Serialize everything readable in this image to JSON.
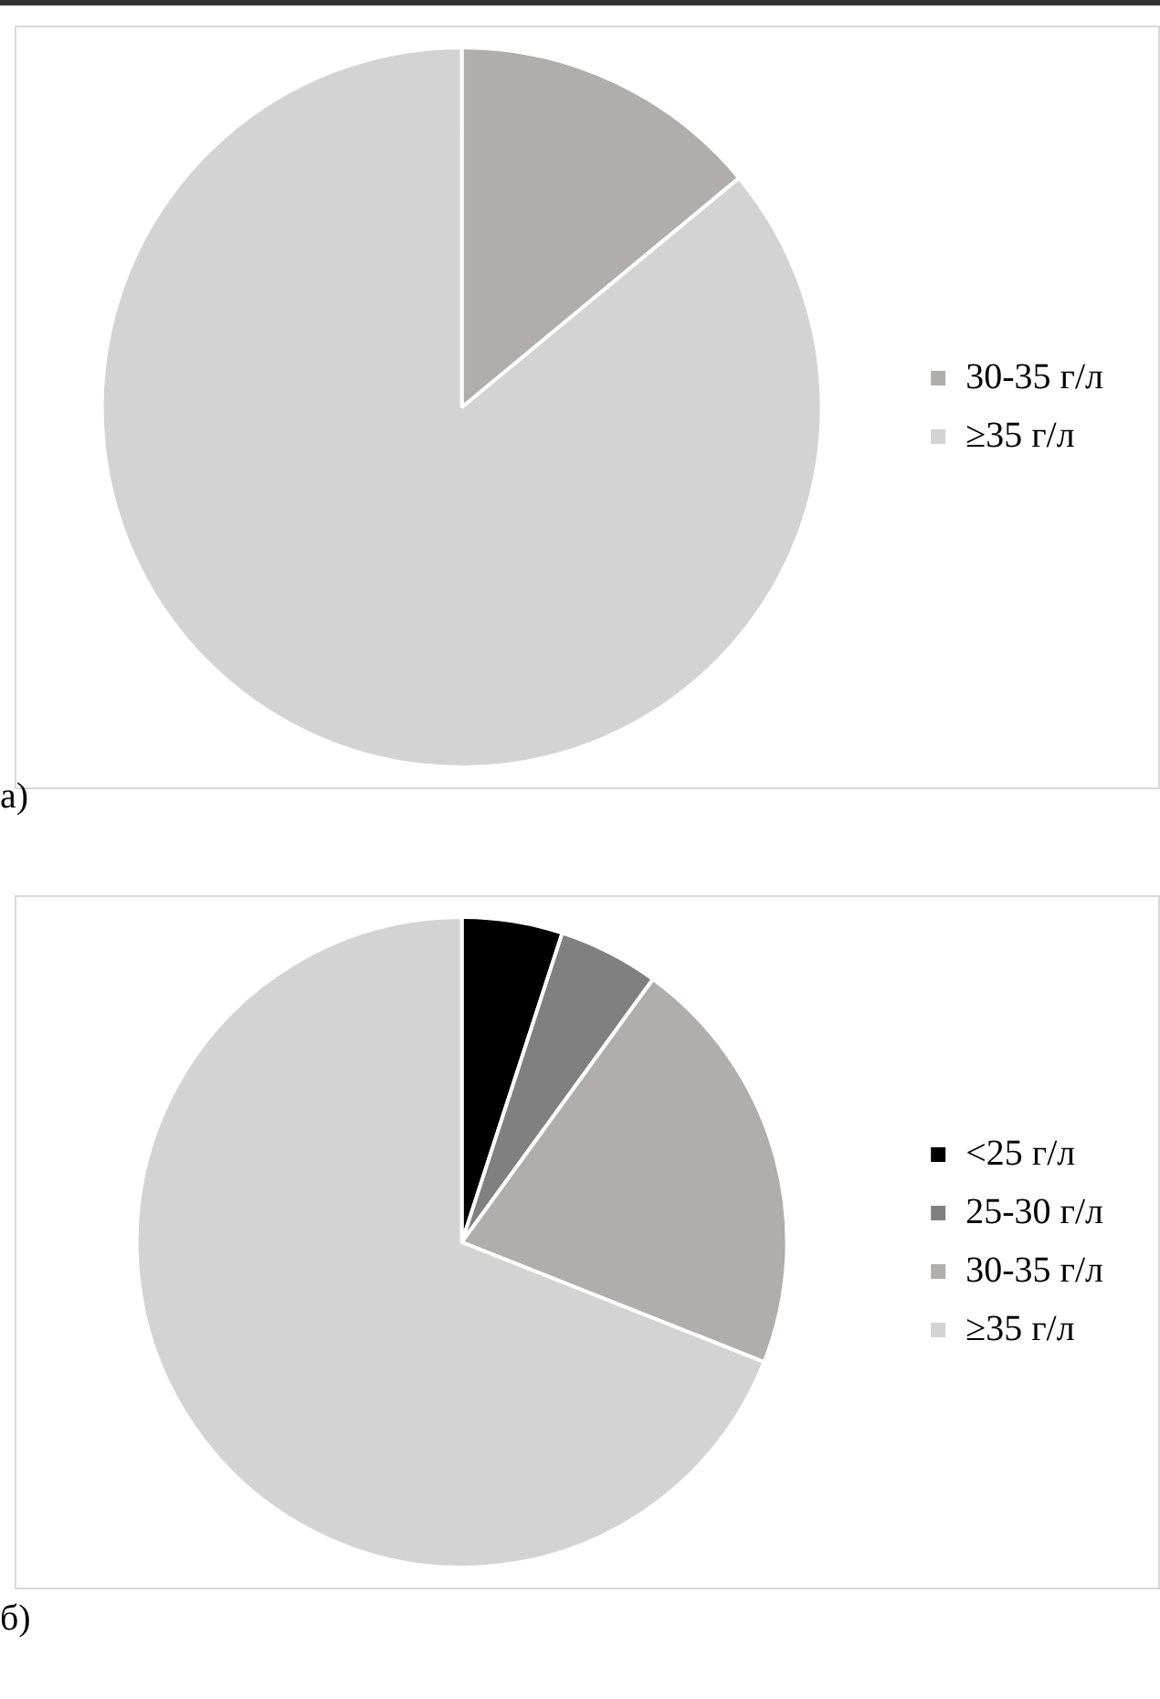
{
  "chart_data": [
    {
      "type": "pie",
      "categories": [
        "30-35 г/л",
        "≥35 г/л"
      ],
      "values": [
        14,
        86
      ],
      "colors": [
        "#b0adac",
        "#d3d3d3"
      ],
      "legend": "right",
      "annotations": [
        "а)"
      ]
    },
    {
      "type": "pie",
      "categories": [
        "<25 г/л",
        "25-30 г/л",
        "30-35 г/л",
        "≥35 г/л"
      ],
      "values": [
        5,
        5,
        21,
        69
      ],
      "colors": [
        "#000000",
        "#808080",
        "#b0adac",
        "#d3d3d3"
      ],
      "legend": "right",
      "annotations": [
        "б)"
      ]
    }
  ]
}
